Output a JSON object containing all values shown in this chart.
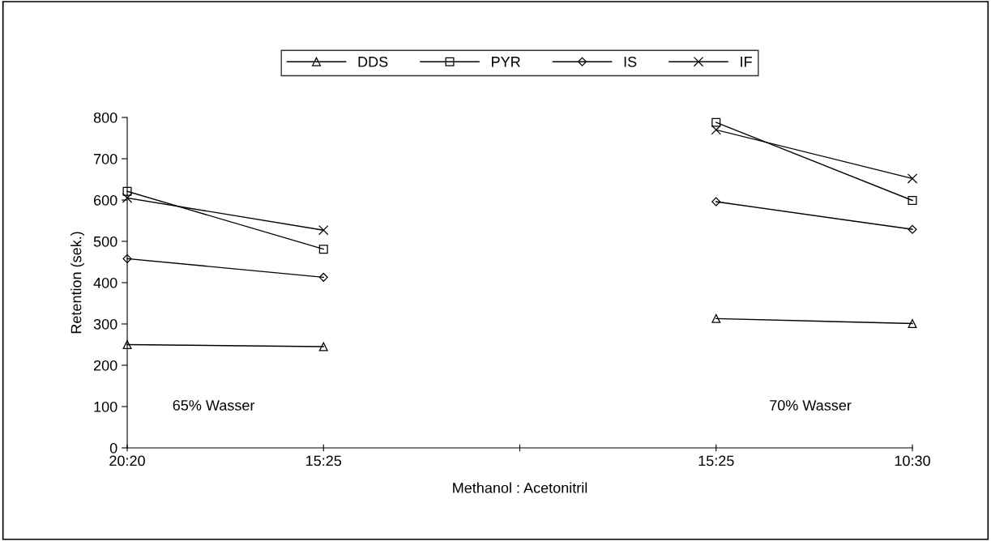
{
  "chart_data": {
    "type": "line",
    "xlabel": "Methanol : Acetonitril",
    "ylabel": "Retention (sek.)",
    "categories": [
      "20:20",
      "15:25",
      null,
      "15:25",
      "10:30"
    ],
    "ylim": [
      0,
      800
    ],
    "yticks": [
      0,
      100,
      200,
      300,
      400,
      500,
      600,
      700,
      800
    ],
    "grid": false,
    "legend": "top",
    "line_style": "solid",
    "annotations": [
      "65% Wasser",
      "70% Wasser"
    ],
    "series": [
      {
        "name": "DDS",
        "color": "#000000",
        "marker": "triangle",
        "values": [
          250,
          245,
          null,
          313,
          301
        ]
      },
      {
        "name": "PYR",
        "color": "#000000",
        "marker": "square",
        "values": [
          621,
          481,
          null,
          788,
          599
        ]
      },
      {
        "name": "IS",
        "color": "#000000",
        "marker": "diamond",
        "values": [
          458,
          413,
          null,
          596,
          529
        ]
      },
      {
        "name": "IF",
        "color": "#000000",
        "marker": "cross",
        "values": [
          605,
          527,
          null,
          770,
          652
        ]
      }
    ]
  }
}
